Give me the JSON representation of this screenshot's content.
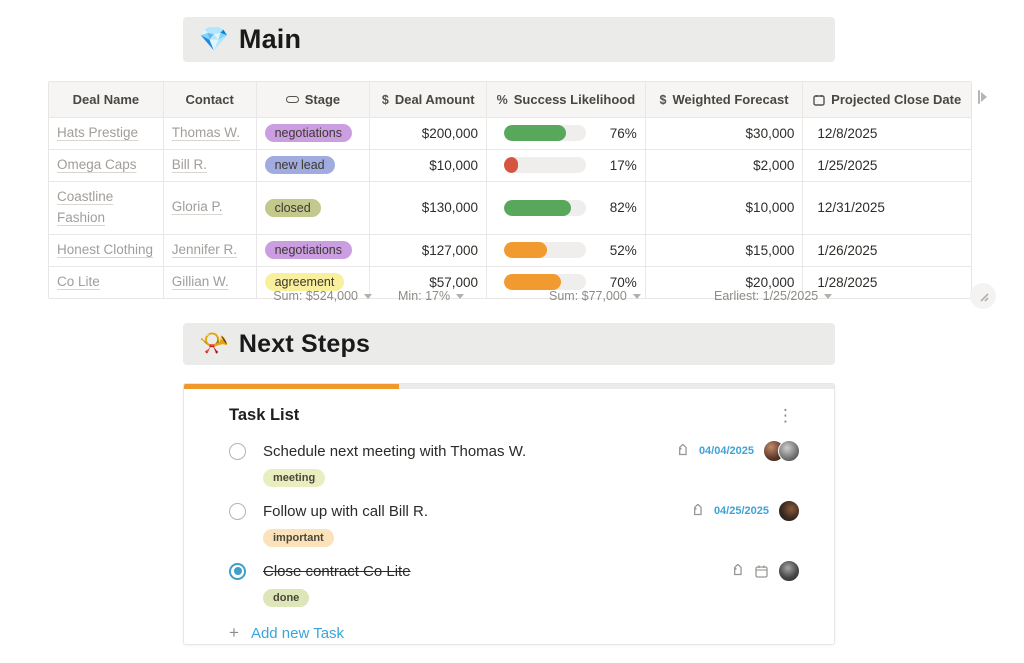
{
  "sections": {
    "main": {
      "icon": "💎",
      "title": "Main"
    },
    "next_steps": {
      "icon": "📯",
      "title": "Next Steps"
    }
  },
  "table": {
    "columns": {
      "deal_name": "Deal Name",
      "contact": "Contact",
      "stage": "Stage",
      "deal_amount": "Deal Amount",
      "deal_amount_icon": "$",
      "success_likelihood": "Success Likelihood",
      "success_likelihood_icon": "%",
      "weighted_forecast": "Weighted Forecast",
      "weighted_forecast_icon": "$",
      "projected_close_date": "Projected Close Date"
    },
    "rows": [
      {
        "deal_name": "Hats Prestige",
        "contact": "Thomas W.",
        "stage": "negotiations",
        "stage_color": "#cb9ee2",
        "deal_amount": "$200,000",
        "likelihood_pct": 76,
        "likelihood_label": "76%",
        "likelihood_color": "#57a85b",
        "weighted_forecast": "$30,000",
        "close_date": "12/8/2025"
      },
      {
        "deal_name": "Omega Caps",
        "contact": "Bill R.",
        "stage": "new lead",
        "stage_color": "#a0abdf",
        "deal_amount": "$10,000",
        "likelihood_pct": 17,
        "likelihood_label": "17%",
        "likelihood_color": "#d75441",
        "weighted_forecast": "$2,000",
        "close_date": "1/25/2025"
      },
      {
        "deal_name": "Coastline Fashion",
        "contact": "Gloria P.",
        "stage": "closed",
        "stage_color": "#c3c98d",
        "deal_amount": "$130,000",
        "likelihood_pct": 82,
        "likelihood_label": "82%",
        "likelihood_color": "#57a85b",
        "weighted_forecast": "$10,000",
        "close_date": "12/31/2025"
      },
      {
        "deal_name": "Honest Clothing",
        "contact": "Jennifer R.",
        "stage": "negotiations",
        "stage_color": "#cb9ee2",
        "deal_amount": "$127,000",
        "likelihood_pct": 52,
        "likelihood_label": "52%",
        "likelihood_color": "#f09a2f",
        "weighted_forecast": "$15,000",
        "close_date": "1/26/2025"
      },
      {
        "deal_name": "Co Lite",
        "contact": "Gillian W.",
        "stage": "agreement",
        "stage_color": "#f8f09c",
        "deal_amount": "$57,000",
        "likelihood_pct": 70,
        "likelihood_label": "70%",
        "likelihood_color": "#f09a2f",
        "weighted_forecast": "$20,000",
        "close_date": "1/28/2025"
      }
    ],
    "summary": {
      "deal_amount": "Sum: $524,000",
      "likelihood": "Min: 17%",
      "weighted_forecast": "Sum: $77,000",
      "close_date": "Earliest: 1/25/2025"
    }
  },
  "task_list": {
    "title": "Task List",
    "progress_pct": 33,
    "menu_icon": "⋮",
    "tasks": [
      {
        "label": "Schedule next meeting with Thomas W.",
        "tag": "meeting",
        "tag_color": "#e9eec0",
        "date": "04/04/2025",
        "done": false
      },
      {
        "label": "Follow up with call Bill R.",
        "tag": "important",
        "tag_color": "#fae2ba",
        "date": "04/25/2025",
        "done": false
      },
      {
        "label": "Close contract Co Lite",
        "tag": "done",
        "tag_color": "#dce6b8",
        "date": "",
        "done": true
      }
    ],
    "add_plus": "+",
    "add_label": "Add new Task"
  }
}
